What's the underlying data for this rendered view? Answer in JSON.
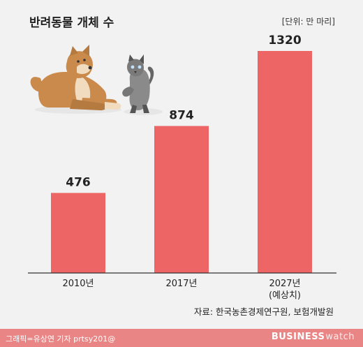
{
  "header": {
    "title": "반려동물 개체 수",
    "unit": "[단위: 만 마리]"
  },
  "footer": {
    "source": "자료: 한국농촌경제연구원, 보험개발원",
    "credit": "그래픽=유상연 기자 prtsy201@",
    "brand_bold": "BUSINESS",
    "brand_light": "watch"
  },
  "colors": {
    "bar": "#ee6565",
    "background": "#f2f2f2",
    "footer": "#e98585"
  },
  "illustration": {
    "dog": "shiba-dog-illustration",
    "cat": "siamese-cat-illustration"
  },
  "chart_data": {
    "type": "bar",
    "title": "반려동물 개체 수",
    "unit": "만 마리",
    "categories": [
      [
        "2010년"
      ],
      [
        "2017년"
      ],
      [
        "2027년",
        "(예상치)"
      ]
    ],
    "values": [
      476,
      874,
      1320
    ],
    "data_labels": [
      "476",
      "874",
      "1320"
    ],
    "ylim": [
      0,
      1320
    ],
    "grid": false,
    "legend": "none"
  }
}
